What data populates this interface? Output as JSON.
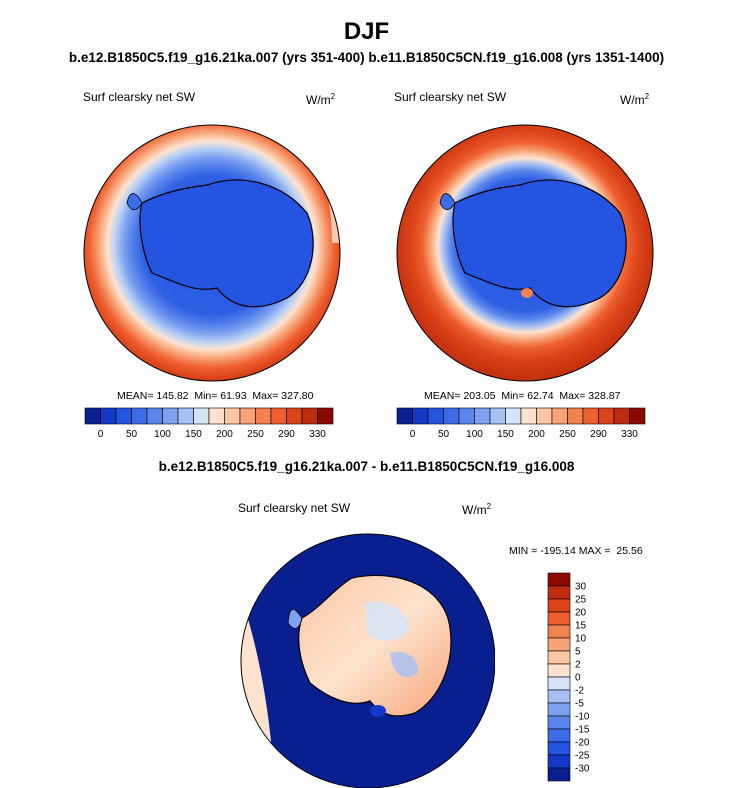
{
  "title": "DJF",
  "subtitle": "b.e12.B1850C5.f19_g16.21ka.007 (yrs 351-400) b.e11.B1850C5CN.f19_g16.008 (yrs 1351-1400)",
  "panels": [
    {
      "label": "Surf clearsky net SW",
      "units_base": "W/m",
      "units_exp": "2",
      "stats": "MEAN= 145.82  Min= 61.93  Max= 327.80"
    },
    {
      "label": "Surf clearsky net SW",
      "units_base": "W/m",
      "units_exp": "2",
      "stats": "MEAN= 203.05  Min= 62.74  Max= 328.87"
    }
  ],
  "diff": {
    "title": "b.e12.B1850C5.f19_g16.21ka.007 - b.e11.B1850C5CN.f19_g16.008",
    "label": "Surf clearsky net SW",
    "units_base": "W/m",
    "units_exp": "2",
    "stats": "MIN = -195.14 MAX =  25.56"
  },
  "colors": {
    "blue_scale": [
      "#0a1f8f",
      "#1438c8",
      "#2554e0",
      "#3d6ce8",
      "#5a86ec",
      "#7ea2f0",
      "#a6c0f4",
      "#d6e4f8"
    ],
    "red_scale": [
      "#fde3cf",
      "#fbc6a4",
      "#f8a478",
      "#f4824f",
      "#ee5f2f",
      "#db4419",
      "#bf2d0e",
      "#8b0a00"
    ]
  },
  "chart_data": [
    {
      "type": "heatmap",
      "projection": "south-polar-stereographic",
      "title": "Surf clearsky net SW",
      "units": "W/m^2",
      "mean": 145.82,
      "min": 61.93,
      "max": 327.8,
      "colorbar": {
        "orientation": "horizontal",
        "ticks": [
          "0",
          "50",
          "100",
          "150",
          "200",
          "250",
          "290",
          "330"
        ],
        "colors": [
          "#0a1f8f",
          "#1438c8",
          "#2554e0",
          "#3d6ce8",
          "#5a86ec",
          "#7ea2f0",
          "#a6c0f4",
          "#d6e4f8",
          "#fde3cf",
          "#fbc6a4",
          "#f8a478",
          "#f4824f",
          "#ee5f2f",
          "#db4419",
          "#bf2d0e",
          "#8b0a00"
        ]
      }
    },
    {
      "type": "heatmap",
      "projection": "south-polar-stereographic",
      "title": "Surf clearsky net SW",
      "units": "W/m^2",
      "mean": 203.05,
      "min": 62.74,
      "max": 328.87,
      "colorbar": {
        "orientation": "horizontal",
        "ticks": [
          "0",
          "50",
          "100",
          "150",
          "200",
          "250",
          "290",
          "330"
        ],
        "colors": [
          "#0a1f8f",
          "#1438c8",
          "#2554e0",
          "#3d6ce8",
          "#5a86ec",
          "#7ea2f0",
          "#a6c0f4",
          "#d6e4f8",
          "#fde3cf",
          "#fbc6a4",
          "#f8a478",
          "#f4824f",
          "#ee5f2f",
          "#db4419",
          "#bf2d0e",
          "#8b0a00"
        ]
      }
    },
    {
      "type": "heatmap",
      "projection": "south-polar-stereographic",
      "title": "Surf clearsky net SW",
      "units": "W/m^2",
      "min": -195.14,
      "max": 25.56,
      "colorbar": {
        "orientation": "vertical",
        "ticks": [
          "30",
          "25",
          "20",
          "15",
          "10",
          "5",
          "2",
          "0",
          "-2",
          "-5",
          "-10",
          "-15",
          "-20",
          "-25",
          "-30"
        ],
        "colors": [
          "#8b0a00",
          "#bf2d0e",
          "#db4419",
          "#ee5f2f",
          "#f4824f",
          "#f8a478",
          "#fbc6a4",
          "#fde3cf",
          "#d6e4f8",
          "#a6c0f4",
          "#7ea2f0",
          "#5a86ec",
          "#3d6ce8",
          "#2554e0",
          "#1438c8",
          "#0a1f8f"
        ]
      }
    }
  ]
}
